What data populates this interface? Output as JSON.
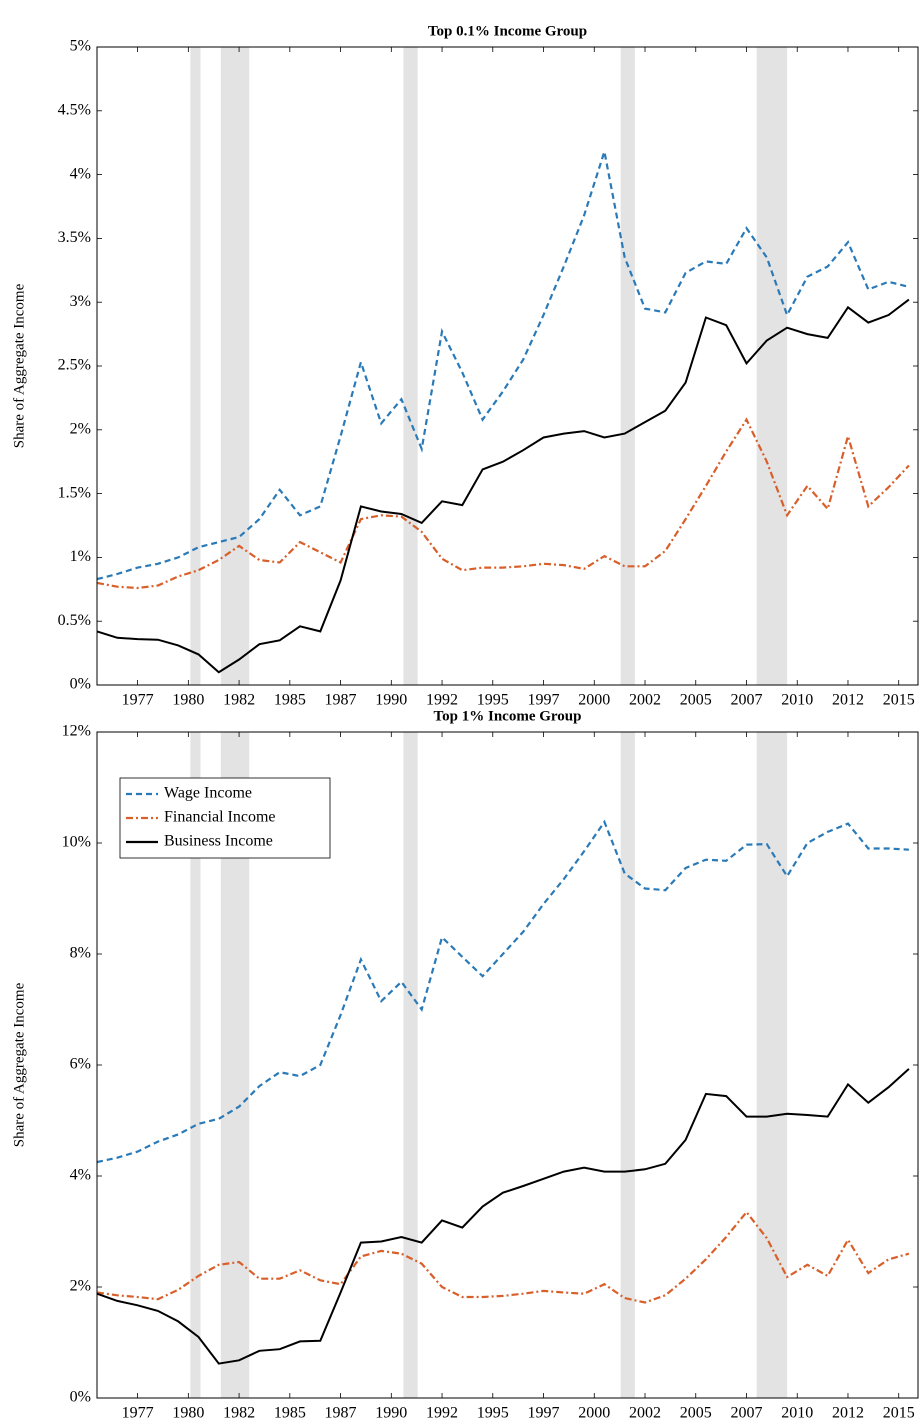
{
  "chart_data": [
    {
      "type": "line",
      "title": "Top 0.1% Income Group",
      "y_label": "Share of Aggregate Income",
      "x": [
        1975,
        1976,
        1977,
        1978,
        1979,
        1980,
        1981,
        1982,
        1983,
        1984,
        1985,
        1986,
        1987,
        1988,
        1989,
        1990,
        1991,
        1992,
        1993,
        1994,
        1995,
        1996,
        1997,
        1998,
        1999,
        2000,
        2001,
        2002,
        2003,
        2004,
        2005,
        2006,
        2007,
        2008,
        2009,
        2010,
        2011,
        2012,
        2013,
        2014,
        2015
      ],
      "xlim": [
        1975,
        2015.45
      ],
      "xticks": [
        1977,
        {
          "value": 1979.5,
          "label": "1980"
        },
        1982,
        {
          "value": 1984.5,
          "label": "1985"
        },
        1987,
        {
          "value": 1989.5,
          "label": "1990"
        },
        1992,
        {
          "value": 1994.5,
          "label": "1995"
        },
        1997,
        {
          "value": 1999.5,
          "label": "2000"
        },
        2002,
        {
          "value": 2004.5,
          "label": "2005"
        },
        2007,
        {
          "value": 2009.5,
          "label": "2010"
        },
        2012,
        {
          "value": 2014.5,
          "label": "2015"
        }
      ],
      "ylim": [
        0,
        5
      ],
      "yticks": [
        {
          "value": 0,
          "label": "0%"
        },
        {
          "value": 0.5,
          "label": "0.5%"
        },
        {
          "value": 1,
          "label": "1%"
        },
        {
          "value": 1.5,
          "label": "1.5%"
        },
        {
          "value": 2,
          "label": "2%"
        },
        {
          "value": 2.5,
          "label": "2.5%"
        },
        {
          "value": 3,
          "label": "3%"
        },
        {
          "value": 3.5,
          "label": "3.5%"
        },
        {
          "value": 4,
          "label": "4%"
        },
        {
          "value": 4.5,
          "label": "4.5%"
        },
        {
          "value": 5,
          "label": "5%"
        }
      ],
      "shaded_spans": [
        [
          1979.6,
          1980.1
        ],
        [
          1981.1,
          1982.5
        ],
        [
          1990.1,
          1990.8
        ],
        [
          2000.8,
          2001.5
        ],
        [
          2007.5,
          2009.0
        ]
      ],
      "grid": false,
      "series": [
        {
          "name": "Wage Income",
          "color": "#2a7ab8",
          "line_style": "dashed",
          "values": [
            0.83,
            0.87,
            0.92,
            0.95,
            1.0,
            1.08,
            1.12,
            1.16,
            1.3,
            1.53,
            1.33,
            1.4,
            1.95,
            2.53,
            2.05,
            2.24,
            1.85,
            2.77,
            2.45,
            2.08,
            2.3,
            2.55,
            2.9,
            3.28,
            3.68,
            4.18,
            3.35,
            2.95,
            2.92,
            3.23,
            3.32,
            3.3,
            3.58,
            3.35,
            2.9,
            3.2,
            3.28,
            3.47,
            3.1,
            3.16,
            3.12
          ]
        },
        {
          "name": "Financial Income",
          "color": "#d95f2a",
          "line_style": "dashdot",
          "values": [
            0.8,
            0.77,
            0.76,
            0.78,
            0.85,
            0.9,
            0.98,
            1.09,
            0.98,
            0.96,
            1.12,
            1.04,
            0.96,
            1.3,
            1.33,
            1.32,
            1.2,
            0.99,
            0.9,
            0.92,
            0.92,
            0.93,
            0.95,
            0.94,
            0.91,
            1.01,
            0.93,
            0.93,
            1.05,
            1.3,
            1.56,
            1.83,
            2.08,
            1.75,
            1.33,
            1.56,
            1.38,
            1.95,
            1.4,
            1.55,
            1.72
          ]
        },
        {
          "name": "Business Income",
          "color": "#000000",
          "line_style": "solid",
          "values": [
            0.42,
            0.37,
            0.36,
            0.355,
            0.31,
            0.24,
            0.1,
            0.2,
            0.32,
            0.35,
            0.46,
            0.42,
            0.82,
            1.4,
            1.36,
            1.34,
            1.27,
            1.44,
            1.41,
            1.69,
            1.75,
            1.84,
            1.94,
            1.97,
            1.99,
            1.94,
            1.97,
            2.06,
            2.15,
            2.37,
            2.88,
            2.82,
            2.52,
            2.7,
            2.8,
            2.75,
            2.72,
            2.96,
            2.84,
            2.9,
            3.02
          ]
        }
      ]
    },
    {
      "type": "line",
      "title": "Top 1% Income Group",
      "y_label": "Share of Aggregate Income",
      "x": [
        1975,
        1976,
        1977,
        1978,
        1979,
        1980,
        1981,
        1982,
        1983,
        1984,
        1985,
        1986,
        1987,
        1988,
        1989,
        1990,
        1991,
        1992,
        1993,
        1994,
        1995,
        1996,
        1997,
        1998,
        1999,
        2000,
        2001,
        2002,
        2003,
        2004,
        2005,
        2006,
        2007,
        2008,
        2009,
        2010,
        2011,
        2012,
        2013,
        2014,
        2015
      ],
      "xlim": [
        1975,
        2015.45
      ],
      "xticks": [
        1977,
        {
          "value": 1979.5,
          "label": "1980"
        },
        1982,
        {
          "value": 1984.5,
          "label": "1985"
        },
        1987,
        {
          "value": 1989.5,
          "label": "1990"
        },
        1992,
        {
          "value": 1994.5,
          "label": "1995"
        },
        1997,
        {
          "value": 1999.5,
          "label": "2000"
        },
        2002,
        {
          "value": 2004.5,
          "label": "2005"
        },
        2007,
        {
          "value": 2009.5,
          "label": "2010"
        },
        2012,
        {
          "value": 2014.5,
          "label": "2015"
        }
      ],
      "ylim": [
        0,
        12
      ],
      "yticks": [
        {
          "value": 0,
          "label": "0%"
        },
        {
          "value": 2,
          "label": "2%"
        },
        {
          "value": 4,
          "label": "4%"
        },
        {
          "value": 6,
          "label": "6%"
        },
        {
          "value": 8,
          "label": "8%"
        },
        {
          "value": 10,
          "label": "10%"
        },
        {
          "value": 12,
          "label": "12%"
        }
      ],
      "shaded_spans": [
        [
          1979.6,
          1980.1
        ],
        [
          1981.1,
          1982.5
        ],
        [
          1990.1,
          1990.8
        ],
        [
          2000.8,
          2001.5
        ],
        [
          2007.5,
          2009.0
        ]
      ],
      "grid": false,
      "legend": "upper left",
      "series": [
        {
          "name": "Wage Income",
          "color": "#2a7ab8",
          "line_style": "dashed",
          "values": [
            4.25,
            4.33,
            4.44,
            4.62,
            4.75,
            4.94,
            5.03,
            5.25,
            5.62,
            5.87,
            5.8,
            6.0,
            6.9,
            7.9,
            7.15,
            7.5,
            7.0,
            8.3,
            7.95,
            7.6,
            8.0,
            8.4,
            8.9,
            9.35,
            9.85,
            10.38,
            9.45,
            9.18,
            9.15,
            9.55,
            9.7,
            9.68,
            9.97,
            9.98,
            9.4,
            10.0,
            10.2,
            10.35,
            9.9,
            9.9,
            9.88
          ]
        },
        {
          "name": "Financial Income",
          "color": "#d95f2a",
          "line_style": "dashdot",
          "values": [
            1.9,
            1.85,
            1.82,
            1.78,
            1.95,
            2.2,
            2.4,
            2.45,
            2.15,
            2.15,
            2.3,
            2.12,
            2.05,
            2.55,
            2.65,
            2.6,
            2.42,
            2.0,
            1.82,
            1.82,
            1.84,
            1.88,
            1.93,
            1.9,
            1.88,
            2.05,
            1.8,
            1.72,
            1.85,
            2.15,
            2.5,
            2.9,
            3.35,
            2.88,
            2.18,
            2.4,
            2.2,
            2.85,
            2.25,
            2.5,
            2.6
          ]
        },
        {
          "name": "Business Income",
          "color": "#000000",
          "line_style": "solid",
          "values": [
            1.88,
            1.75,
            1.67,
            1.57,
            1.38,
            1.1,
            0.62,
            0.68,
            0.85,
            0.88,
            1.02,
            1.03,
            1.9,
            2.8,
            2.82,
            2.9,
            2.8,
            3.2,
            3.07,
            3.45,
            3.7,
            3.82,
            3.95,
            4.08,
            4.15,
            4.08,
            4.08,
            4.12,
            4.22,
            4.65,
            5.48,
            5.44,
            5.07,
            5.07,
            5.12,
            5.1,
            5.07,
            5.65,
            5.32,
            5.6,
            5.93
          ]
        }
      ]
    }
  ]
}
